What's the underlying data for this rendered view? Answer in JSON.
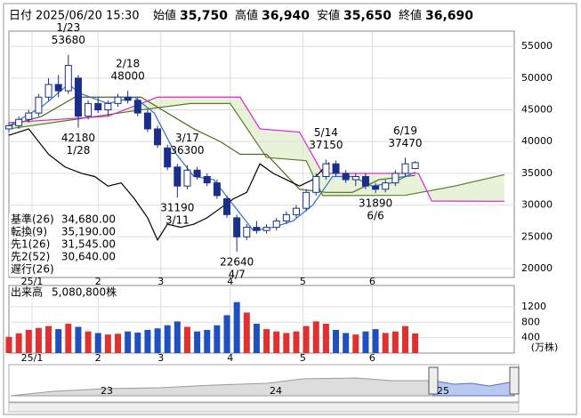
{
  "header": {
    "date_label": "日付",
    "date": "2025/06/20 15:30",
    "items": [
      {
        "label": "始値",
        "value": "35,750",
        "color": "#000000"
      },
      {
        "label": "高値",
        "value": "36,940",
        "color": "#e02020"
      },
      {
        "label": "安値",
        "value": "35,650",
        "color": "#208020"
      },
      {
        "label": "終値",
        "value": "36,690",
        "color": "#000000"
      }
    ]
  },
  "chart_data": {
    "type": "candlestick",
    "x": [
      0,
      3,
      6,
      9,
      12,
      15,
      18,
      21,
      24,
      27,
      30,
      33,
      36,
      39,
      42,
      45,
      48,
      51,
      54,
      57,
      60,
      63,
      66,
      69,
      72,
      75,
      78,
      81,
      84,
      87,
      90,
      93,
      96,
      99,
      102,
      105,
      108,
      111,
      114,
      117,
      120,
      123
    ],
    "open": [
      42000,
      42500,
      43500,
      44500,
      47000,
      49000,
      48000,
      50000,
      44000,
      46000,
      45000,
      46000,
      47000,
      46500,
      44500,
      42000,
      39000,
      36000,
      33000,
      35500,
      34500,
      33500,
      31000,
      28000,
      25000,
      26500,
      26000,
      26500,
      27500,
      28500,
      29500,
      32000,
      34500,
      36500,
      35000,
      34000,
      34500,
      33000,
      32500,
      33500,
      35000,
      35750
    ],
    "high": [
      43000,
      44000,
      45000,
      47500,
      50000,
      50500,
      53680,
      50500,
      46500,
      47000,
      46500,
      47500,
      48000,
      47000,
      45000,
      42500,
      39500,
      36500,
      36300,
      36000,
      35000,
      34000,
      31500,
      28500,
      27000,
      27500,
      27000,
      28000,
      29000,
      30000,
      32500,
      35000,
      37150,
      37000,
      35500,
      35000,
      35000,
      33500,
      34000,
      35500,
      37470,
      36940
    ],
    "low": [
      41500,
      42000,
      43000,
      44000,
      46500,
      47000,
      47500,
      42180,
      43500,
      44500,
      44000,
      45500,
      46000,
      44000,
      41500,
      39000,
      35500,
      31190,
      32500,
      34000,
      33000,
      31000,
      28000,
      22640,
      24500,
      25500,
      25500,
      26000,
      27000,
      28000,
      29000,
      31500,
      34000,
      34500,
      33500,
      33000,
      32500,
      31890,
      32000,
      33000,
      34500,
      35650
    ],
    "close": [
      42500,
      43500,
      44500,
      47000,
      49000,
      48000,
      52000,
      44000,
      46000,
      45000,
      46000,
      47000,
      46500,
      44500,
      42000,
      39500,
      36000,
      33000,
      35500,
      34500,
      33500,
      31500,
      28500,
      25000,
      26500,
      26000,
      26500,
      27500,
      28500,
      29500,
      32000,
      34500,
      36500,
      35000,
      34000,
      34500,
      33000,
      32500,
      33500,
      35000,
      36500,
      36690
    ],
    "up_color": "#ffffff",
    "down_color": "#1a2f8a",
    "outline_color": "#1a2f8a",
    "xlim": [
      0,
      153
    ],
    "xticks": [
      {
        "value": 7,
        "label": "25/1"
      },
      {
        "value": 27,
        "label": "2"
      },
      {
        "value": 46,
        "label": "3"
      },
      {
        "value": 67,
        "label": "4"
      },
      {
        "value": 89,
        "label": "5"
      },
      {
        "value": 110,
        "label": "6"
      }
    ],
    "ylim": [
      18600,
      57400
    ],
    "yticks": [
      20000,
      25000,
      30000,
      35000,
      40000,
      45000,
      50000,
      55000
    ],
    "grid": true,
    "annotations": [
      {
        "date": "1/23",
        "value": 53680
      },
      {
        "date": "1/28",
        "value": 42180
      },
      {
        "date": "2/18",
        "value": 48000
      },
      {
        "date": "3/11",
        "value": 31190
      },
      {
        "date": "3/17",
        "value": 36300
      },
      {
        "date": "4/7",
        "value": 22640
      },
      {
        "date": "5/14",
        "value": 37150
      },
      {
        "date": "6/6",
        "value": 31890
      },
      {
        "date": "6/19",
        "value": 37470
      }
    ],
    "series": [
      {
        "name": "基準(26)",
        "legend_value": "34,680.00",
        "color": "#4a6a20",
        "x": [
          0,
          10,
          20,
          30,
          40,
          48,
          56,
          64,
          70,
          78,
          88,
          96,
          104,
          112,
          123
        ],
        "values": [
          42500,
          44000,
          47000,
          47000,
          47000,
          44500,
          42000,
          40000,
          38000,
          38000,
          32500,
          32000,
          32000,
          34000,
          34680
        ]
      },
      {
        "name": "転換(9)",
        "legend_value": "35,190.00",
        "color": "#2f6fd0",
        "x": [
          0,
          10,
          18,
          22,
          30,
          38,
          44,
          50,
          56,
          62,
          68,
          74,
          80,
          86,
          92,
          98,
          104,
          110,
          116,
          123
        ],
        "values": [
          42500,
          45500,
          49000,
          47500,
          46000,
          47000,
          44500,
          38500,
          34500,
          34000,
          30000,
          26000,
          26500,
          27500,
          30000,
          34500,
          34500,
          33000,
          33500,
          35190
        ]
      },
      {
        "name": "先1(26)",
        "legend_value": "31,545.00",
        "color": "#5a7a2a",
        "x": [
          0,
          20,
          40,
          55,
          67,
          78,
          90,
          95,
          120,
          135,
          150
        ],
        "values": [
          42000,
          43500,
          45000,
          46000,
          46000,
          37500,
          37000,
          31500,
          31545,
          33000,
          34800
        ]
      },
      {
        "name": "先2(52)",
        "legend_value": "30,640.00",
        "color": "#e020d0",
        "x": [
          0,
          30,
          45,
          70,
          76,
          88,
          95,
          124,
          128,
          150
        ],
        "values": [
          43000,
          44000,
          47000,
          47000,
          42000,
          41500,
          35000,
          35000,
          30640,
          30600
        ]
      },
      {
        "name": "遅行(26)",
        "color": "#000000",
        "x": [
          0,
          6,
          12,
          17,
          22,
          26,
          30,
          34,
          38,
          42,
          45,
          48,
          52,
          56,
          60,
          64,
          68,
          72,
          76,
          80,
          84,
          88,
          92,
          97
        ],
        "values": [
          41000,
          42000,
          38000,
          36000,
          35000,
          34500,
          33000,
          33500,
          31000,
          28000,
          24500,
          27000,
          26500,
          27000,
          28000,
          29500,
          31000,
          32000,
          36500,
          35000,
          34000,
          33000,
          34000,
          36690
        ]
      }
    ],
    "cloud_color": "#e8f2d8",
    "volume": {
      "title": "出来高",
      "total": "5,080,800株",
      "unit": "(万株)",
      "values": [
        420,
        510,
        600,
        650,
        700,
        620,
        760,
        680,
        560,
        520,
        480,
        500,
        560,
        530,
        600,
        640,
        720,
        820,
        680,
        560,
        600,
        720,
        980,
        1320,
        1050,
        760,
        620,
        560,
        520,
        560,
        700,
        820,
        760,
        600,
        520,
        480,
        560,
        620,
        520,
        560,
        700,
        508
      ],
      "up_color": "#e03030",
      "down_color": "#2050c0",
      "ylim": [
        0,
        1750
      ],
      "yticks": [
        400,
        800,
        1200
      ]
    },
    "navigator": {
      "labels": [
        "23",
        "24",
        "25"
      ]
    }
  }
}
